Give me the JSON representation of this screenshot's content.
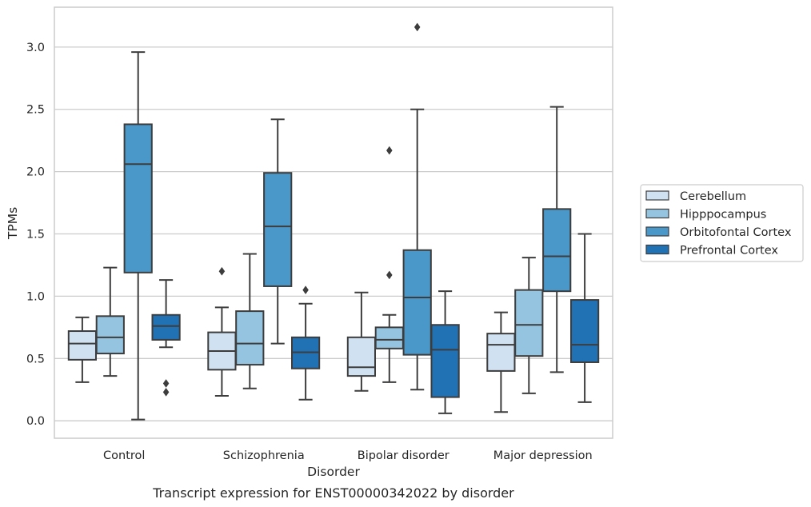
{
  "chart_data": {
    "type": "boxplot",
    "caption": "Transcript expression for ENST00000342022 by disorder",
    "xlabel": "Disorder",
    "ylabel": "TPMs",
    "ylim": [
      -0.14,
      3.32
    ],
    "yticks": [
      "0.0",
      "0.5",
      "1.0",
      "1.5",
      "2.0",
      "2.5",
      "3.0"
    ],
    "grid": "horizontal",
    "legend_position": "right",
    "categories": [
      "Control",
      "Schizophrenia",
      "Bipolar disorder",
      "Major depression"
    ],
    "series": [
      {
        "name": "Cerebellum",
        "color": "#d0e1f2",
        "boxes": [
          {
            "whisker_low": 0.31,
            "q1": 0.49,
            "median": 0.62,
            "q3": 0.72,
            "whisker_high": 0.83,
            "outliers": []
          },
          {
            "whisker_low": 0.2,
            "q1": 0.41,
            "median": 0.56,
            "q3": 0.71,
            "whisker_high": 0.91,
            "outliers": [
              1.2
            ]
          },
          {
            "whisker_low": 0.24,
            "q1": 0.36,
            "median": 0.43,
            "q3": 0.67,
            "whisker_high": 1.03,
            "outliers": []
          },
          {
            "whisker_low": 0.07,
            "q1": 0.4,
            "median": 0.61,
            "q3": 0.7,
            "whisker_high": 0.87,
            "outliers": []
          }
        ]
      },
      {
        "name": "Hipppocampus",
        "color": "#94c4df",
        "boxes": [
          {
            "whisker_low": 0.36,
            "q1": 0.54,
            "median": 0.67,
            "q3": 0.84,
            "whisker_high": 1.23,
            "outliers": []
          },
          {
            "whisker_low": 0.26,
            "q1": 0.45,
            "median": 0.62,
            "q3": 0.88,
            "whisker_high": 1.34,
            "outliers": []
          },
          {
            "whisker_low": 0.31,
            "q1": 0.58,
            "median": 0.65,
            "q3": 0.75,
            "whisker_high": 0.85,
            "outliers": [
              2.17,
              1.17
            ]
          },
          {
            "whisker_low": 0.22,
            "q1": 0.52,
            "median": 0.77,
            "q3": 1.05,
            "whisker_high": 1.31,
            "outliers": []
          }
        ]
      },
      {
        "name": "Orbitofontal Cortex",
        "color": "#4a98c9",
        "boxes": [
          {
            "whisker_low": 0.01,
            "q1": 1.19,
            "median": 2.06,
            "q3": 2.38,
            "whisker_high": 2.96,
            "outliers": []
          },
          {
            "whisker_low": 0.62,
            "q1": 1.08,
            "median": 1.56,
            "q3": 1.99,
            "whisker_high": 2.42,
            "outliers": []
          },
          {
            "whisker_low": 0.25,
            "q1": 0.53,
            "median": 0.99,
            "q3": 1.37,
            "whisker_high": 2.5,
            "outliers": [
              3.16
            ]
          },
          {
            "whisker_low": 0.39,
            "q1": 1.04,
            "median": 1.32,
            "q3": 1.7,
            "whisker_high": 2.52,
            "outliers": []
          }
        ]
      },
      {
        "name": "Prefrontal Cortex",
        "color": "#2171b5",
        "boxes": [
          {
            "whisker_low": 0.59,
            "q1": 0.65,
            "median": 0.76,
            "q3": 0.85,
            "whisker_high": 1.13,
            "outliers": [
              0.3,
              0.23
            ]
          },
          {
            "whisker_low": 0.17,
            "q1": 0.42,
            "median": 0.55,
            "q3": 0.67,
            "whisker_high": 0.94,
            "outliers": [
              1.05
            ]
          },
          {
            "whisker_low": 0.06,
            "q1": 0.19,
            "median": 0.57,
            "q3": 0.77,
            "whisker_high": 1.04,
            "outliers": []
          },
          {
            "whisker_low": 0.15,
            "q1": 0.47,
            "median": 0.61,
            "q3": 0.97,
            "whisker_high": 1.5,
            "outliers": []
          }
        ]
      }
    ],
    "style": {
      "background": "#ffffff",
      "grid_color": "#cccccc",
      "frame_color": "#cccccc",
      "line_color": "#3d3d3d",
      "text_color": "#262626"
    }
  }
}
